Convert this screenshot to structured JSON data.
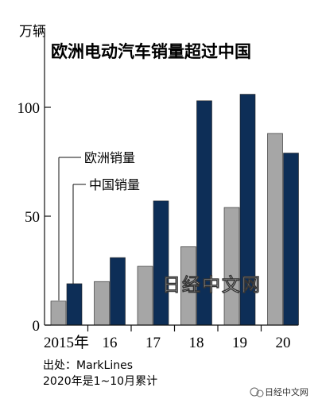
{
  "chart_data": {
    "type": "bar",
    "unit": "万辆",
    "title": "欧洲电动汽车销量超过中国",
    "categories": [
      "2015年",
      "16",
      "17",
      "18",
      "19",
      "20"
    ],
    "series": [
      {
        "name": "欧洲销量",
        "color": "#a6a6a6",
        "values": [
          11,
          20,
          27,
          36,
          54,
          88
        ]
      },
      {
        "name": "中国销量",
        "color": "#0d2e57",
        "values": [
          19,
          31,
          57,
          103,
          106,
          79
        ]
      }
    ],
    "ylim": [
      0,
      125
    ],
    "yticks": [
      0,
      50,
      100
    ],
    "grid": false,
    "source": "出处：MarkLines",
    "footnote": "2020年是1~10月累计"
  },
  "watermark": "日经中文网",
  "brand": "日经中文网"
}
